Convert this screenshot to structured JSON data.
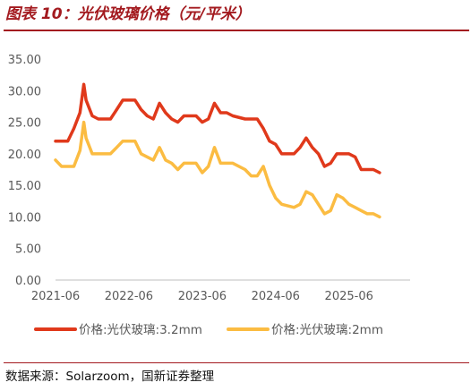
{
  "header": {
    "title": "图表 10：光伏玻璃价格（元/平米）"
  },
  "footer": {
    "source": "数据来源：Solarzoom，国新证券整理"
  },
  "chart_data": {
    "type": "line",
    "title": "图表 10：光伏玻璃价格（元/平米）",
    "xlabel": "",
    "ylabel": "",
    "ylim": [
      0,
      35
    ],
    "y_ticks": [
      "0.00",
      "5.00",
      "10.00",
      "15.00",
      "20.00",
      "25.00",
      "30.00",
      "35.00"
    ],
    "x_ticks": [
      "2021-06",
      "2022-06",
      "2023-06",
      "2024-06",
      "2025-06"
    ],
    "x_range": [
      "2021-06",
      "2026-04"
    ],
    "grid": false,
    "legend_position": "bottom",
    "series": [
      {
        "name": "价格:光伏玻璃:3.2mm",
        "color": "#e0391b",
        "points": [
          [
            "2021-06",
            22.0
          ],
          [
            "2021-08",
            22.0
          ],
          [
            "2021-09",
            24.0
          ],
          [
            "2021-10",
            26.5
          ],
          [
            "2021-10-20",
            31.0
          ],
          [
            "2021-11",
            28.5
          ],
          [
            "2021-12",
            26.0
          ],
          [
            "2022-01",
            25.5
          ],
          [
            "2022-03",
            25.5
          ],
          [
            "2022-04",
            27.0
          ],
          [
            "2022-05",
            28.5
          ],
          [
            "2022-07",
            28.5
          ],
          [
            "2022-08",
            27.0
          ],
          [
            "2022-09",
            26.0
          ],
          [
            "2022-10",
            25.5
          ],
          [
            "2022-11",
            28.0
          ],
          [
            "2022-12",
            26.5
          ],
          [
            "2023-01",
            25.5
          ],
          [
            "2023-02",
            25.0
          ],
          [
            "2023-03",
            26.0
          ],
          [
            "2023-05",
            26.0
          ],
          [
            "2023-06",
            25.0
          ],
          [
            "2023-07",
            25.5
          ],
          [
            "2023-08",
            28.0
          ],
          [
            "2023-09",
            26.5
          ],
          [
            "2023-10",
            26.5
          ],
          [
            "2023-11",
            26.0
          ],
          [
            "2024-01",
            25.5
          ],
          [
            "2024-03",
            25.5
          ],
          [
            "2024-04",
            24.0
          ],
          [
            "2024-05",
            22.0
          ],
          [
            "2024-06",
            21.5
          ],
          [
            "2024-07",
            20.0
          ],
          [
            "2024-09",
            20.0
          ],
          [
            "2024-10",
            21.0
          ],
          [
            "2024-11",
            22.5
          ],
          [
            "2024-12",
            21.0
          ],
          [
            "2025-01",
            20.0
          ],
          [
            "2025-02",
            18.0
          ],
          [
            "2025-03",
            18.5
          ],
          [
            "2025-04",
            20.0
          ],
          [
            "2025-06",
            20.0
          ],
          [
            "2025-07",
            19.5
          ],
          [
            "2025-08",
            17.5
          ],
          [
            "2025-10",
            17.5
          ],
          [
            "2025-11",
            17.0
          ]
        ]
      },
      {
        "name": "价格:光伏玻璃:2mm",
        "color": "#fbbc42",
        "points": [
          [
            "2021-06",
            19.0
          ],
          [
            "2021-07",
            18.0
          ],
          [
            "2021-09",
            18.0
          ],
          [
            "2021-10",
            20.5
          ],
          [
            "2021-10-20",
            25.0
          ],
          [
            "2021-11",
            22.5
          ],
          [
            "2021-12",
            20.0
          ],
          [
            "2022-03",
            20.0
          ],
          [
            "2022-04",
            21.0
          ],
          [
            "2022-05",
            22.0
          ],
          [
            "2022-07",
            22.0
          ],
          [
            "2022-08",
            20.0
          ],
          [
            "2022-10",
            19.0
          ],
          [
            "2022-11",
            21.0
          ],
          [
            "2022-12",
            19.0
          ],
          [
            "2023-01",
            18.5
          ],
          [
            "2023-02",
            17.5
          ],
          [
            "2023-03",
            18.5
          ],
          [
            "2023-05",
            18.5
          ],
          [
            "2023-06",
            17.0
          ],
          [
            "2023-07",
            18.0
          ],
          [
            "2023-08",
            21.0
          ],
          [
            "2023-09",
            18.5
          ],
          [
            "2023-11",
            18.5
          ],
          [
            "2024-01",
            17.5
          ],
          [
            "2024-02",
            16.5
          ],
          [
            "2024-03",
            16.5
          ],
          [
            "2024-04",
            18.0
          ],
          [
            "2024-05",
            15.0
          ],
          [
            "2024-06",
            13.0
          ],
          [
            "2024-07",
            12.0
          ],
          [
            "2024-09",
            11.5
          ],
          [
            "2024-10",
            12.0
          ],
          [
            "2024-11",
            14.0
          ],
          [
            "2024-12",
            13.5
          ],
          [
            "2025-01",
            12.0
          ],
          [
            "2025-02",
            10.5
          ],
          [
            "2025-03",
            11.0
          ],
          [
            "2025-04",
            13.5
          ],
          [
            "2025-05",
            13.0
          ],
          [
            "2025-06",
            12.0
          ],
          [
            "2025-07",
            11.5
          ],
          [
            "2025-08",
            11.0
          ],
          [
            "2025-09",
            10.5
          ],
          [
            "2025-10",
            10.5
          ],
          [
            "2025-11",
            10.0
          ]
        ]
      }
    ]
  }
}
